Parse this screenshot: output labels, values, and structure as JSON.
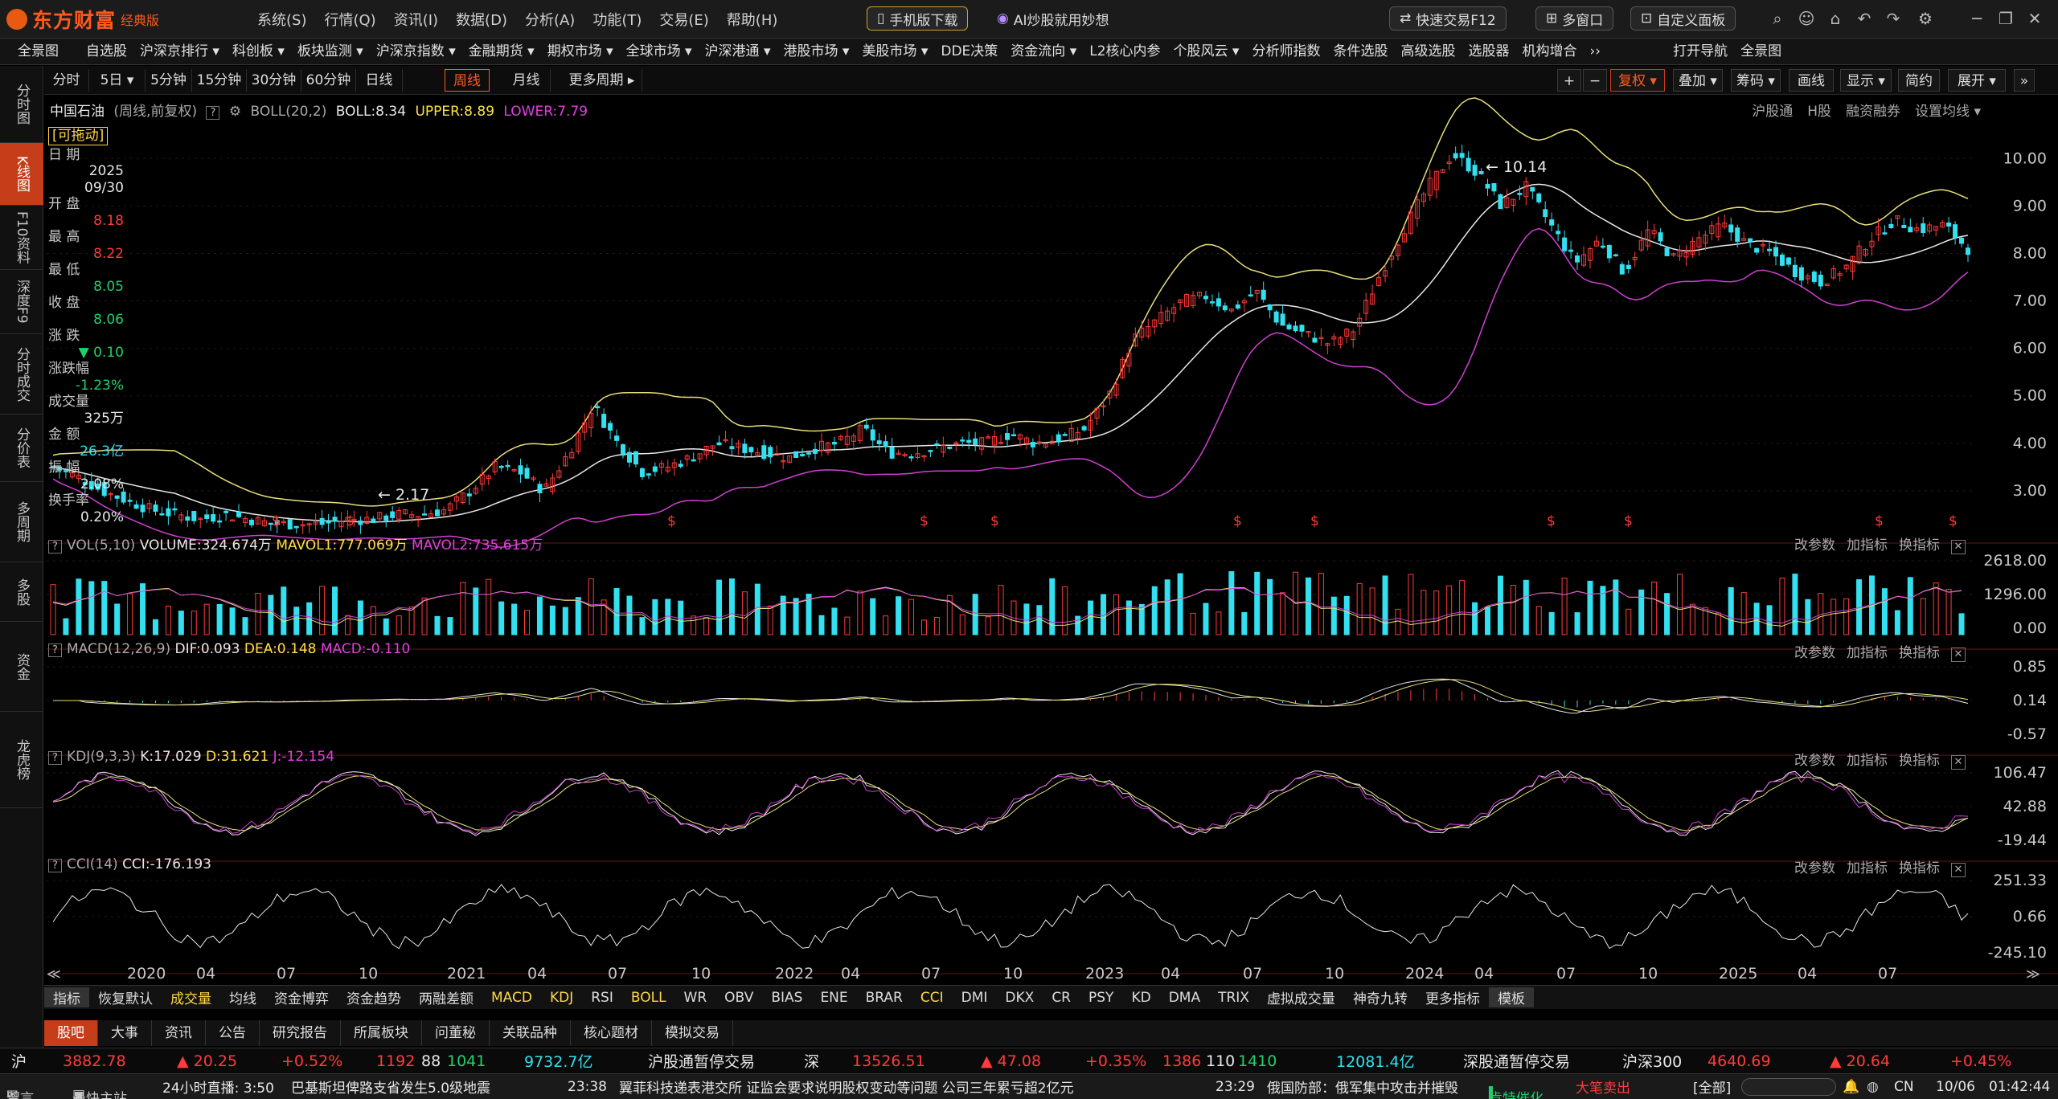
{
  "app": {
    "logo_text": "东方财富",
    "logo_sub": "经典版",
    "menu": [
      "系统(S)",
      "行情(Q)",
      "资讯(I)",
      "数据(D)",
      "分析(A)",
      "功能(T)",
      "交易(E)",
      "帮助(H)"
    ],
    "mobile_download": "手机版下载",
    "ai_promo": "AI炒股就用妙想",
    "quick_trade": "快速交易F12",
    "multi_window": "多窗口",
    "custom_panel": "自定义面板"
  },
  "nav": [
    "全景图",
    "自选股",
    "沪深京排行 ▾",
    "科创板 ▾",
    "板块监测 ▾",
    "沪深京指数 ▾",
    "金融期货 ▾",
    "期权市场 ▾",
    "全球市场 ▾",
    "沪深港通 ▾",
    "港股市场 ▾",
    "美股市场 ▾",
    "DDE决策",
    "资金流向 ▾",
    "L2核心内参",
    "个股风云 ▾",
    "分析师指数",
    "条件选股",
    "高级选股",
    "选股器",
    "机构增合",
    "››",
    "打开导航",
    "全景图"
  ],
  "left_rail": [
    "分时图",
    "K线图",
    "F10资料",
    "深度F9",
    "分时成交",
    "分价表",
    "多周期",
    "多股",
    "资金",
    "龙虎榜"
  ],
  "toolbar": {
    "periods": [
      "分时",
      "5日 ▾",
      "5分钟",
      "15分钟",
      "30分钟",
      "60分钟",
      "日线",
      "周线",
      "月线",
      "更多周期 ▸"
    ],
    "active": "周线",
    "right": [
      "+",
      "−",
      "复权 ▾",
      "叠加 ▾",
      "筹码 ▾",
      "画线",
      "显示 ▾",
      "简约",
      "展开 ▾"
    ]
  },
  "legend": {
    "stock": "中国石油",
    "mode": "(周线,前复权)",
    "ind": "BOLL(20,2)",
    "boll": "BOLL:8.34",
    "upper": "UPPER:8.89",
    "lower": "LOWER:7.79"
  },
  "right_links": [
    "沪股通",
    "H股",
    "融资融券",
    "设置均线 ▾"
  ],
  "info": {
    "draggable": "[可拖动]",
    "date_label": "日 期",
    "year": "2025",
    "date": "09/30",
    "open_label": "开 盘",
    "open": "8.18",
    "high_label": "最 高",
    "high": "8.22",
    "low_label": "最 低",
    "low": "8.05",
    "close_label": "收 盘",
    "close": "8.06",
    "chg_label": "涨 跌",
    "chg": "▼ 0.10",
    "chgpct_label": "涨跌幅",
    "chgpct": "-1.23%",
    "vol_label": "成交量",
    "vol": "325万",
    "amt_label": "金 额",
    "amt": "26.3亿",
    "amp_label": "振 幅",
    "amp": "2.08%",
    "turn_label": "换手率",
    "turn": "0.20%"
  },
  "chart_data": [
    {
      "type": "candlestick",
      "title": "中国石油 周线 前复权",
      "ylim": [
        2.0,
        10.8
      ],
      "yticks": [
        3.0,
        4.0,
        5.0,
        6.0,
        7.0,
        8.0,
        9.0,
        10.0
      ],
      "annotations": [
        {
          "text": "10.14",
          "x": "2024-04"
        },
        {
          "text": "2.17",
          "x": "2020-11"
        }
      ],
      "x_labels": [
        "2020",
        "04",
        "07",
        "10",
        "2021",
        "04",
        "07",
        "10",
        "2022",
        "04",
        "07",
        "10",
        "2023",
        "04",
        "07",
        "10",
        "2024",
        "04",
        "07",
        "10",
        "2025",
        "04",
        "07"
      ],
      "close_series": [
        3.5,
        3.3,
        3.0,
        2.8,
        2.6,
        2.5,
        2.4,
        2.5,
        2.4,
        2.3,
        2.3,
        2.3,
        2.4,
        2.4,
        2.5,
        2.5,
        2.6,
        3.0,
        3.5,
        3.4,
        3.0,
        3.8,
        4.8,
        4.0,
        3.4,
        3.5,
        3.7,
        4.0,
        3.9,
        3.8,
        3.7,
        3.9,
        4.0,
        4.3,
        3.8,
        3.8,
        3.9,
        4.0,
        4.0,
        4.2,
        4.0,
        4.1,
        4.3,
        5.0,
        6.2,
        6.6,
        7.0,
        7.1,
        6.8,
        7.2,
        6.5,
        6.3,
        6.1,
        6.4,
        7.5,
        8.5,
        9.4,
        10.1,
        9.7,
        9.0,
        9.4,
        8.6,
        7.8,
        8.3,
        7.6,
        8.5,
        7.9,
        8.3,
        8.6,
        8.2,
        8.0,
        7.6,
        7.4,
        7.7,
        8.3,
        8.7,
        8.5,
        8.6,
        8.1
      ],
      "series": [
        {
          "name": "BOLL",
          "value": "8.34"
        },
        {
          "name": "UPPER",
          "value": "8.89"
        },
        {
          "name": "LOWER",
          "value": "7.79"
        }
      ]
    },
    {
      "type": "bar",
      "title": "VOL(5,10)",
      "yticks": [
        "2618.00",
        "1296.00",
        "0.00"
      ],
      "series": [
        {
          "name": "VOLUME",
          "value": "324.674万"
        },
        {
          "name": "MAVOL1",
          "value": "777.069万"
        },
        {
          "name": "MAVOL2",
          "value": "735.615万"
        }
      ]
    },
    {
      "type": "bar",
      "title": "MACD(12,26,9)",
      "yticks": [
        "0.85",
        "0.14",
        "-0.57"
      ],
      "series": [
        {
          "name": "DIF",
          "value": "0.093"
        },
        {
          "name": "DEA",
          "value": "0.148"
        },
        {
          "name": "MACD",
          "value": "-0.110"
        }
      ]
    },
    {
      "type": "line",
      "title": "KDJ(9,3,3)",
      "yticks": [
        "106.47",
        "42.88",
        "-19.44"
      ],
      "series": [
        {
          "name": "K",
          "value": "17.029"
        },
        {
          "name": "D",
          "value": "31.621"
        },
        {
          "name": "J",
          "value": "-12.154"
        }
      ]
    },
    {
      "type": "line",
      "title": "CCI(14)",
      "yticks": [
        "251.33",
        "0.66",
        "-245.10"
      ],
      "series": [
        {
          "name": "CCI",
          "value": "-176.193"
        }
      ]
    }
  ],
  "panel_ctrl": [
    "改参数",
    "加指标",
    "换指标"
  ],
  "vol_legend": {
    "title": "VOL(5,10)",
    "a": "VOLUME:324.674万",
    "b": "MAVOL1:777.069万",
    "c": "MAVOL2:735.615万"
  },
  "macd_legend": {
    "title": "MACD(12,26,9)",
    "a": "DIF:0.093",
    "b": "DEA:0.148",
    "c": "MACD:-0.110"
  },
  "kdj_legend": {
    "title": "KDJ(9,3,3)",
    "a": "K:17.029",
    "b": "D:31.621",
    "c": "J:-12.154"
  },
  "cci_legend": {
    "title": "CCI(14)",
    "a": "CCI:-176.193"
  },
  "ind_tabs": [
    "指标",
    "恢复默认",
    "成交量",
    "均线",
    "资金博弈",
    "资金趋势",
    "两融差额",
    "MACD",
    "KDJ",
    "RSI",
    "BOLL",
    "WR",
    "OBV",
    "BIAS",
    "ENE",
    "BRAR",
    "CCI",
    "DMI",
    "DKX",
    "CR",
    "PSY",
    "KD",
    "DMA",
    "TRIX",
    "虚拟成交量",
    "神奇九转",
    "更多指标",
    "模板"
  ],
  "bottom_tabs": [
    "股吧",
    "大事",
    "资讯",
    "公告",
    "研究报告",
    "所属板块",
    "问董秘",
    "关联品种",
    "核心题材",
    "模拟交易"
  ],
  "ticker": {
    "sh": "沪",
    "sh_idx": "3882.78",
    "sh_chg": "▲ 20.25",
    "sh_pct": "+0.52%",
    "sh_up": "1192",
    "sh_flat": "88",
    "sh_dn": "1041",
    "sh_amt": "9732.7亿",
    "hkc1": "沪股通暂停交易",
    "sz": "深",
    "sz_idx": "13526.51",
    "sz_chg": "▲ 47.08",
    "sz_pct": "+0.35%",
    "sz_up": "1386",
    "sz_flat": "110",
    "sz_dn": "1410",
    "sz_amt": "12081.4亿",
    "hkc2": "深股通暂停交易",
    "hs300": "沪深300",
    "hs300_idx": "4640.69",
    "hs300_chg": "▲ 20.64",
    "hs300_pct": "+0.45%"
  },
  "status": {
    "msg": "留言",
    "master": "最快主站",
    "live": "24小时直播: 3:50",
    "news1": "巴基斯坦俾路支省发生5.0级地震",
    "t1": "23:38",
    "news2": "翼菲科技递表港交所 证监会要求说明股权变动等问题 公司三年累亏超2亿元",
    "t2": "23:29",
    "news3": "俄国防部：俄军集中攻击并摧毁",
    "hint": "肯特催化",
    "hint2": "大笔卖出",
    "all": "[全部]",
    "cn": "CN",
    "date": "10/06",
    "time": "01:42:44"
  }
}
